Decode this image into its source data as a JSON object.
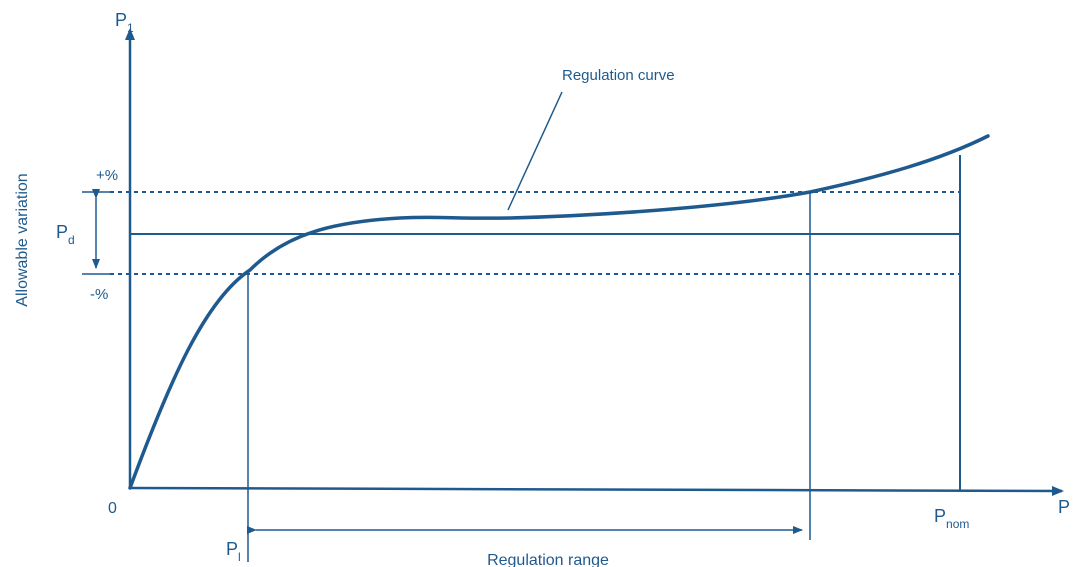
{
  "diagram": {
    "y_axis_symbol": "P",
    "y_axis_subscript": "1",
    "x_axis_symbol": "P",
    "x_axis_subscript": "",
    "y_axis_title": "Allowable variation",
    "origin": "0",
    "plus_label": "+%",
    "minus_label": "-%",
    "band_symbol": "P",
    "band_subscript": "d",
    "curve_label": "Regulation curve",
    "lower_symbol": "P",
    "lower_subscript": "l",
    "nom_symbol": "P",
    "nom_subscript": "nom",
    "range_label": "Regulation range"
  },
  "colors": {
    "line": "#1f5a8f",
    "text": "#1f5a8f",
    "background": "#ffffff"
  }
}
